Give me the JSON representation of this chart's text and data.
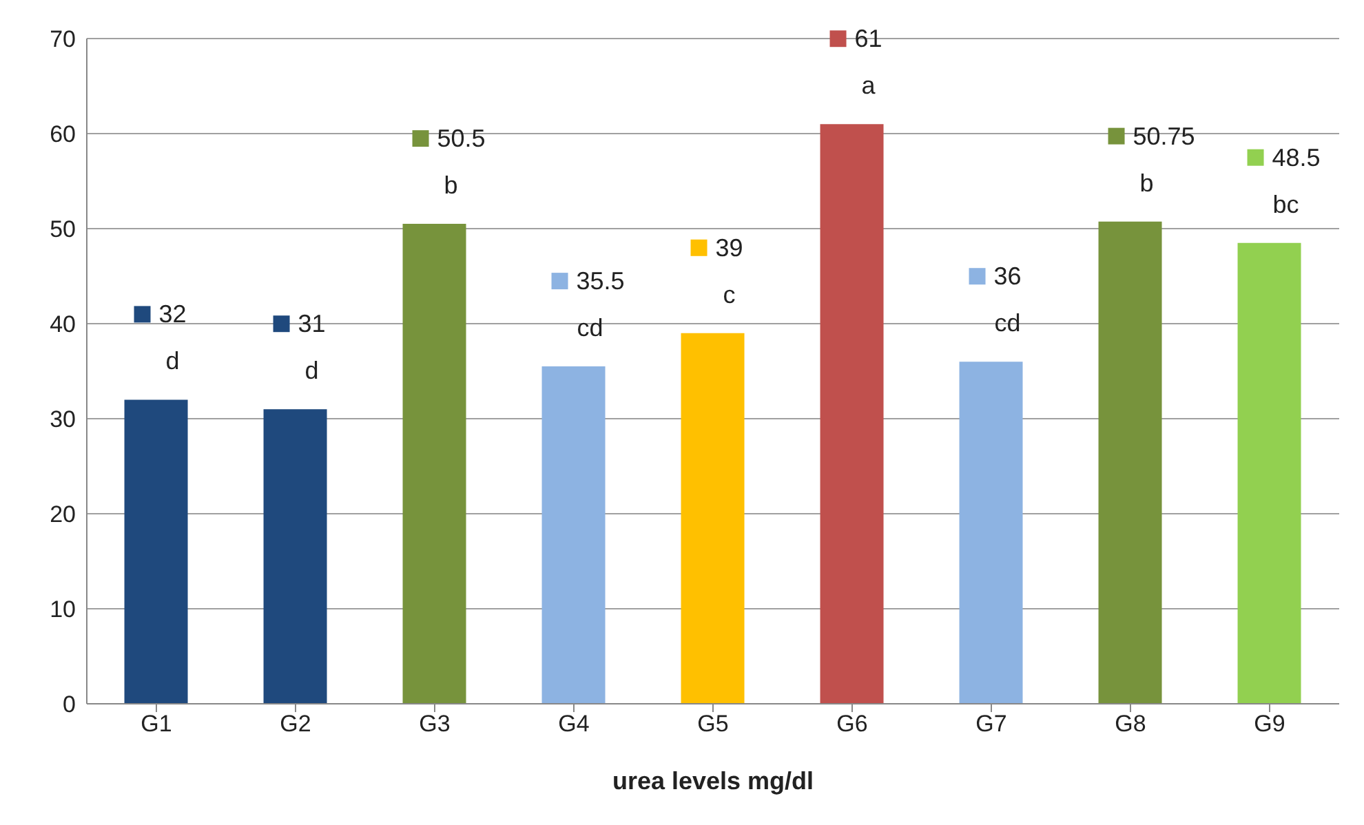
{
  "chart_data": {
    "type": "bar",
    "xlabel": "urea levels mg/dl",
    "categories": [
      "G1",
      "G2",
      "G3",
      "G4",
      "G5",
      "G6",
      "G7",
      "G8",
      "G9"
    ],
    "values": [
      32,
      31,
      50.5,
      35.5,
      39,
      61,
      36,
      50.75,
      48.5
    ],
    "colors": [
      "#1f497d",
      "#1f497d",
      "#77933c",
      "#8db3e2",
      "#ffc000",
      "#c0504d",
      "#8db3e2",
      "#77933c",
      "#92d050"
    ],
    "data_labels": true,
    "annotations": [
      {
        "text": "d",
        "x": "G1",
        "y": 32
      },
      {
        "text": "d",
        "x": "G2",
        "y": 31
      },
      {
        "text": "b",
        "x": "G3",
        "y": 50.5
      },
      {
        "text": "cd",
        "x": "G4",
        "y": 35.5
      },
      {
        "text": "c",
        "x": "G5",
        "y": 39
      },
      {
        "text": "a",
        "x": "G6",
        "y": 61
      },
      {
        "text": "cd",
        "x": "G7",
        "y": 36
      },
      {
        "text": "b",
        "x": "G8",
        "y": 50.75
      },
      {
        "text": "bc",
        "x": "G9",
        "y": 48.5
      }
    ],
    "ylim": [
      0,
      70
    ],
    "yticks": [
      0,
      10,
      20,
      30,
      40,
      50,
      60,
      70
    ],
    "grid": "y"
  }
}
